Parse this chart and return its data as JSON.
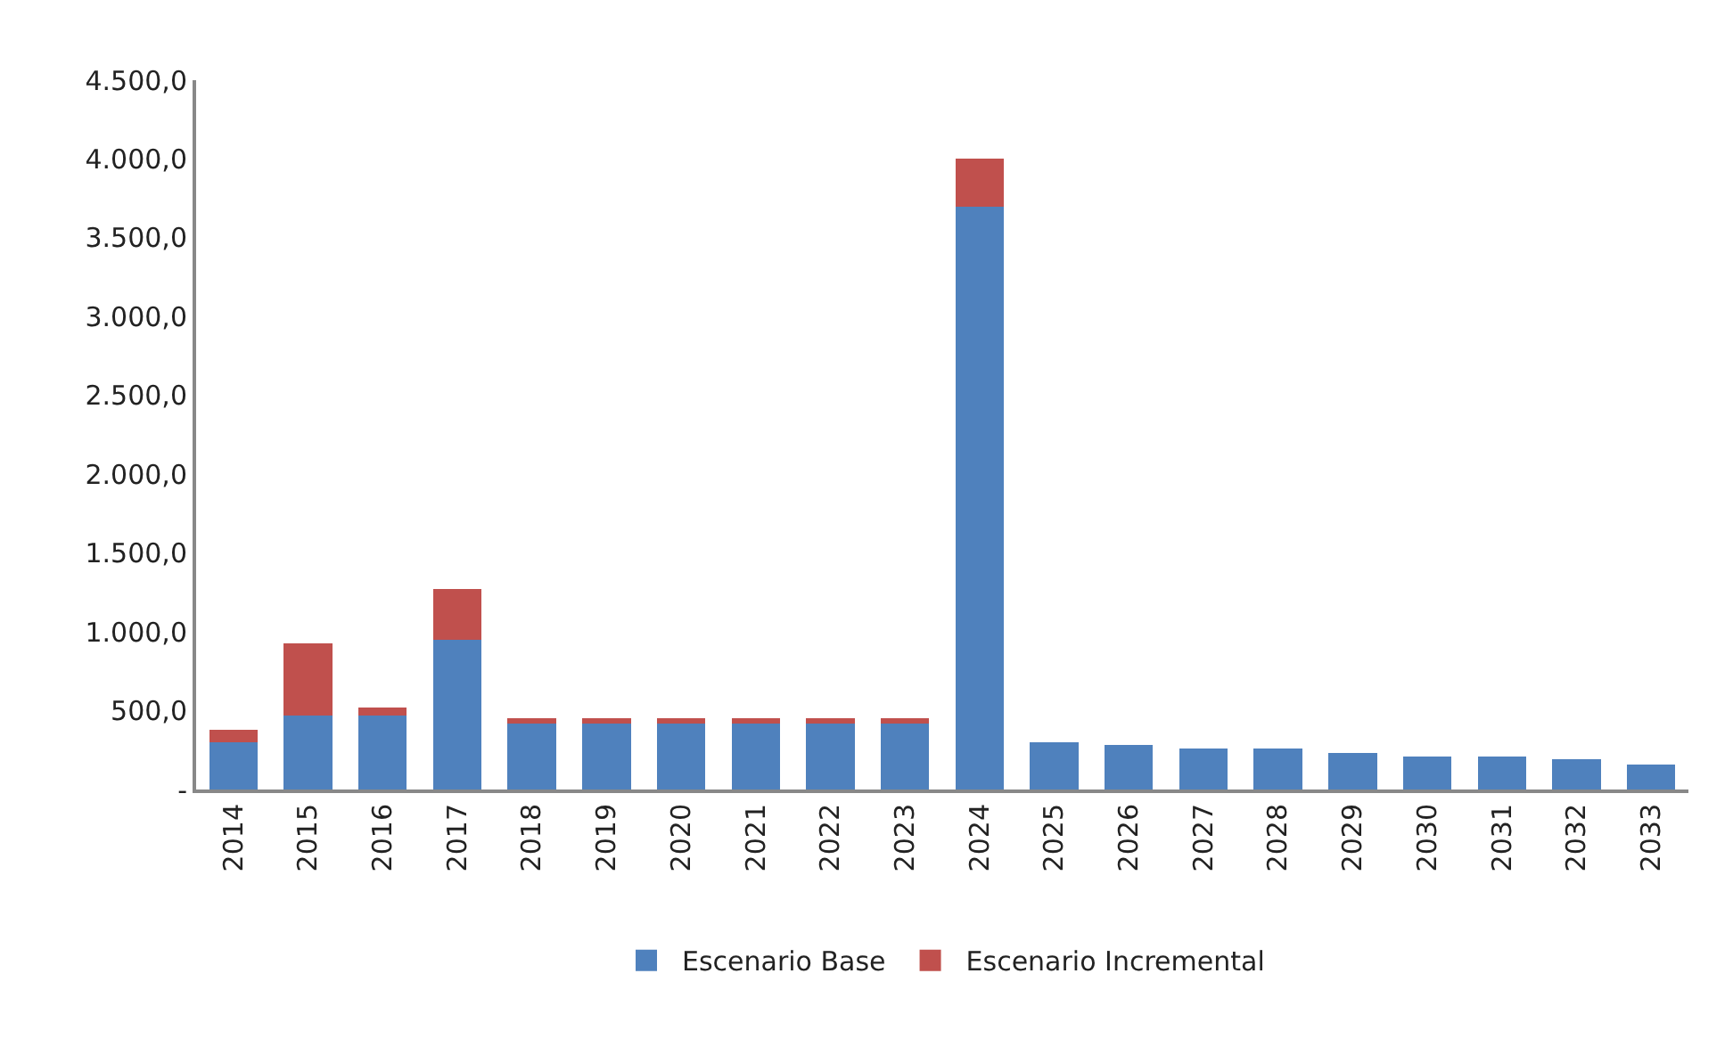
{
  "chart_data": {
    "type": "bar",
    "stacked": true,
    "categories": [
      "2014",
      "2015",
      "2016",
      "2017",
      "2018",
      "2019",
      "2020",
      "2021",
      "2022",
      "2023",
      "2024",
      "2025",
      "2026",
      "2027",
      "2028",
      "2029",
      "2030",
      "2031",
      "2032",
      "2033"
    ],
    "series": [
      {
        "name": "Escenario Base",
        "color": "#4f81bd",
        "values": [
          300,
          470,
          470,
          950,
          420,
          420,
          420,
          420,
          420,
          420,
          3700,
          300,
          280,
          260,
          260,
          230,
          210,
          210,
          190,
          160
        ]
      },
      {
        "name": "Escenario Incremental",
        "color": "#c0504d",
        "values": [
          80,
          460,
          50,
          320,
          30,
          30,
          30,
          30,
          30,
          30,
          300,
          null,
          null,
          null,
          null,
          null,
          null,
          null,
          null,
          null
        ]
      }
    ],
    "ylim": [
      0,
      4500
    ],
    "yticks": [
      {
        "value": 0,
        "label": "-"
      },
      {
        "value": 500,
        "label": "500,0"
      },
      {
        "value": 1000,
        "label": "1.000,0"
      },
      {
        "value": 1500,
        "label": "1.500,0"
      },
      {
        "value": 2000,
        "label": "2.000,0"
      },
      {
        "value": 2500,
        "label": "2.500,0"
      },
      {
        "value": 3000,
        "label": "3.000,0"
      },
      {
        "value": 3500,
        "label": "3.500,0"
      },
      {
        "value": 4000,
        "label": "4.000,0"
      },
      {
        "value": 4500,
        "label": "4.500,0"
      }
    ],
    "legend": "bottom"
  }
}
